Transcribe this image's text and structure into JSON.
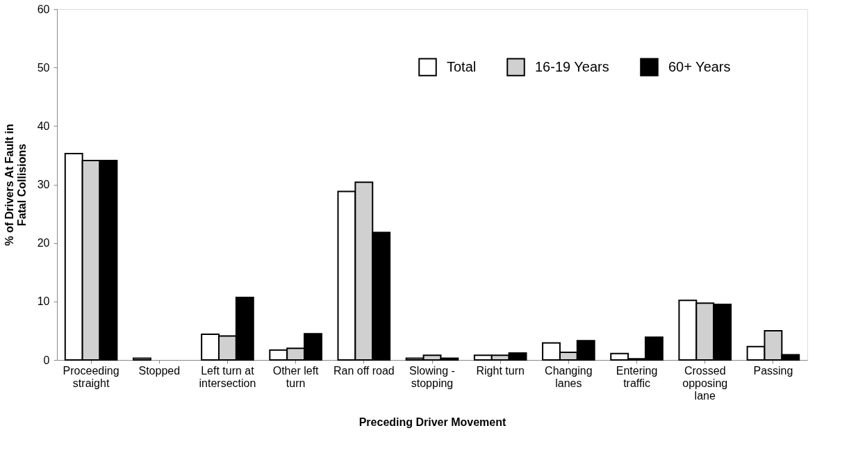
{
  "chart_data": {
    "type": "bar",
    "xlabel": "Preceding Driver Movement",
    "ylabel": "% of Drivers At Fault in Fatal Collisions",
    "categories": [
      "Proceeding straight",
      "Stopped",
      "Left turn at intersection",
      "Other left turn",
      "Ran off road",
      "Slowing - stopping",
      "Right turn",
      "Changing lanes",
      "Entering traffic",
      "Crossed opposing lane",
      "Passing"
    ],
    "series": [
      {
        "name": "Total",
        "color": "#ffffff",
        "values": [
          35.3,
          0.3,
          4.4,
          1.7,
          28.8,
          0.3,
          0.8,
          2.9,
          1.1,
          10.2,
          2.3
        ]
      },
      {
        "name": "16-19 Years",
        "color": "#d0d0d0",
        "values": [
          34.1,
          null,
          4.1,
          2.0,
          30.4,
          0.8,
          0.8,
          1.3,
          0.2,
          9.7,
          5.0
        ]
      },
      {
        "name": "60+ Years",
        "color": "#000000",
        "values": [
          34.1,
          null,
          10.7,
          4.5,
          21.8,
          0.3,
          1.2,
          3.3,
          3.9,
          9.5,
          0.9
        ]
      }
    ],
    "ylim": [
      0,
      60
    ],
    "yticks": [
      0,
      10,
      20,
      30,
      40,
      50,
      60
    ],
    "grid": false,
    "legend": "top right"
  }
}
